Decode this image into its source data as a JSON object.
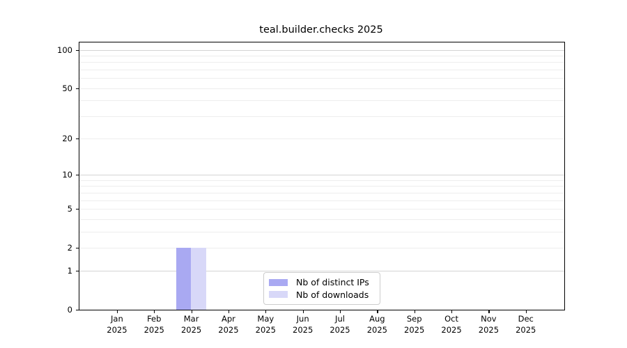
{
  "chart_data": {
    "type": "bar",
    "title": "teal.builder.checks 2025",
    "xlabel": "",
    "ylabel": "",
    "categories": [
      "Jan",
      "Feb",
      "Mar",
      "Apr",
      "May",
      "Jun",
      "Jul",
      "Aug",
      "Sep",
      "Oct",
      "Nov",
      "Dec"
    ],
    "category_year": "2025",
    "series": [
      {
        "name": "Nb of distinct IPs",
        "color": "#a9a9f2",
        "values": [
          0,
          0,
          2,
          0,
          0,
          0,
          0,
          0,
          0,
          0,
          0,
          0
        ]
      },
      {
        "name": "Nb of downloads",
        "color": "#d8d8f8",
        "values": [
          0,
          0,
          2,
          0,
          0,
          0,
          0,
          0,
          0,
          0,
          0,
          0
        ]
      }
    ],
    "yscale": "log1p",
    "ylim": [
      0,
      114
    ],
    "yticks": [
      0,
      1,
      2,
      5,
      10,
      20,
      50,
      100
    ],
    "grid": {
      "major": [
        1,
        10,
        100
      ],
      "minor": [
        2,
        3,
        4,
        5,
        6,
        7,
        8,
        9,
        20,
        30,
        40,
        50,
        60,
        70,
        80,
        90
      ],
      "major_color": "#d4d4d4",
      "minor_color": "#ededed"
    },
    "legend_position": "lower-center",
    "background_color": "#ffffff",
    "spine_color": "#000000"
  }
}
